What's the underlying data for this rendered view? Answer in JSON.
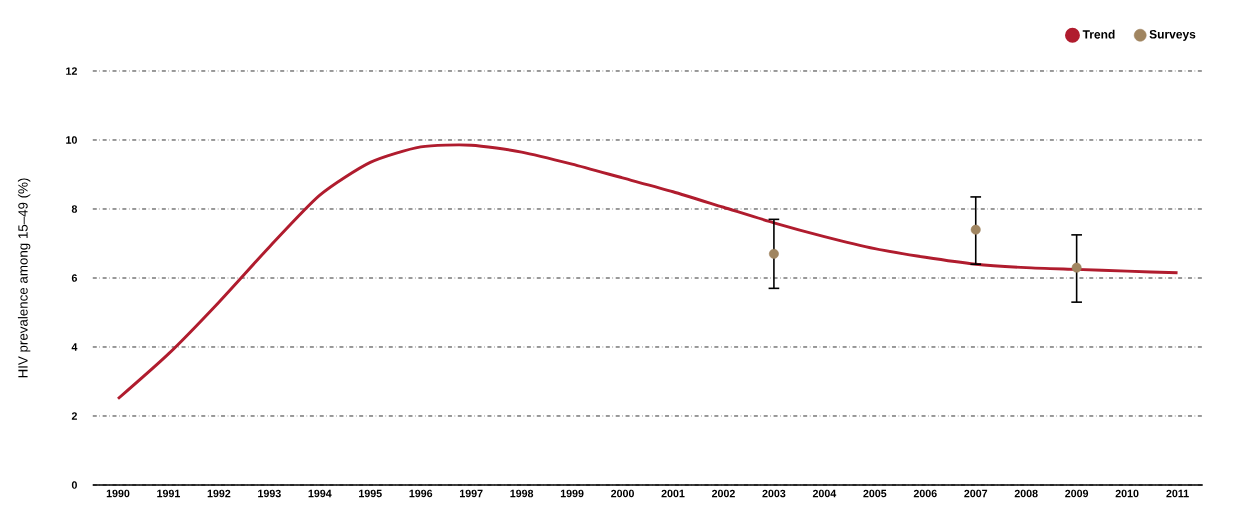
{
  "chart_data": {
    "type": "line",
    "ylabel": "HIV prevalence among 15–49 (%)",
    "categories": [
      "1990",
      "1991",
      "1992",
      "1993",
      "1994",
      "1995",
      "1996",
      "1997",
      "1998",
      "1999",
      "2000",
      "2001",
      "2002",
      "2003",
      "2004",
      "2005",
      "2006",
      "2007",
      "2008",
      "2009",
      "2010",
      "2011"
    ],
    "series": [
      {
        "name": "Trend",
        "color": "#b01c2e",
        "values": [
          2.5,
          3.8,
          5.3,
          6.9,
          8.4,
          9.35,
          9.8,
          9.85,
          9.65,
          9.3,
          8.9,
          8.5,
          8.05,
          7.6,
          7.2,
          6.85,
          6.6,
          6.4,
          6.3,
          6.25,
          6.2,
          6.15
        ]
      },
      {
        "name": "Surveys",
        "type": "scatter",
        "marker": "circle",
        "color": "#a08560",
        "values": [
          null,
          null,
          null,
          null,
          null,
          null,
          null,
          null,
          null,
          null,
          null,
          null,
          null,
          6.7,
          null,
          null,
          null,
          7.4,
          null,
          6.3,
          null,
          null
        ],
        "errors": [
          null,
          null,
          null,
          null,
          null,
          null,
          null,
          null,
          null,
          null,
          null,
          null,
          null,
          [
            5.7,
            7.7
          ],
          null,
          null,
          null,
          [
            6.4,
            8.35
          ],
          null,
          [
            5.3,
            7.25
          ],
          null,
          null
        ]
      }
    ],
    "ylim": [
      0,
      12
    ],
    "yticks": [
      0,
      2,
      4,
      6,
      8,
      10,
      12
    ],
    "grid": "y",
    "legend": "top right"
  }
}
